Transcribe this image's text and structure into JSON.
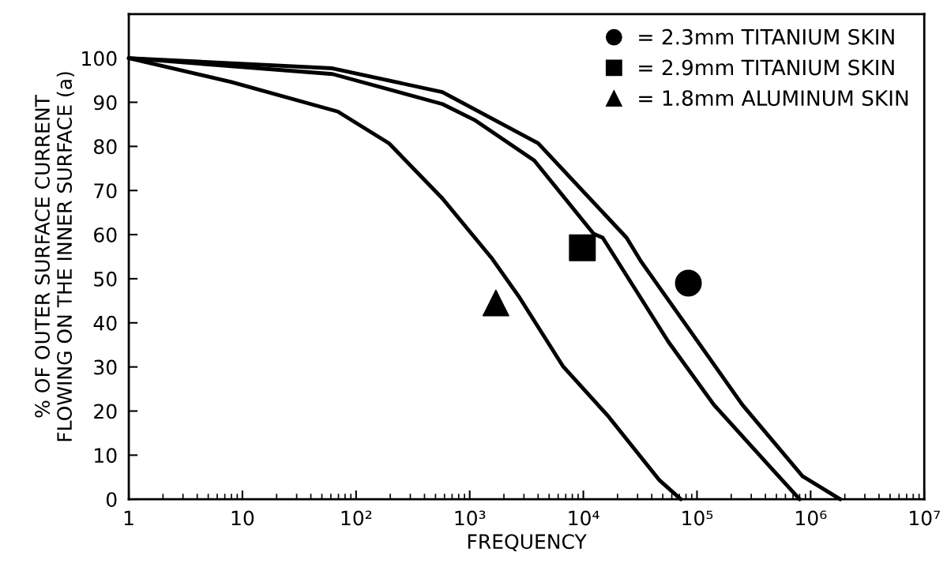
{
  "chart_data": {
    "type": "line",
    "xlabel": "FREQUENCY",
    "ylabel": "% OF OUTER SURFACE CURRENT\nFLOWING ON THE INNER SURFACE (a)",
    "log": "x",
    "xlim": [
      1,
      10000000
    ],
    "ylim": [
      0,
      110
    ],
    "xticks": [
      1,
      10,
      {
        "value": 100,
        "label": "10²"
      },
      {
        "value": 1000,
        "label": "10³"
      },
      {
        "value": 10000,
        "label": "10⁴"
      },
      {
        "value": 100000,
        "label": "10⁵"
      },
      {
        "value": 1000000,
        "label": "10⁶"
      },
      {
        "value": 10000000,
        "label": "10⁷"
      }
    ],
    "yticks": [
      0,
      10,
      20,
      30,
      40,
      50,
      60,
      70,
      80,
      90,
      100
    ],
    "grid": false,
    "legend": "top right",
    "series": [
      {
        "color": "#000000",
        "x": [
          1,
          8,
          69,
          195,
          575,
          1580,
          2750,
          6600,
          16600,
          46800,
          72000
        ],
        "values": [
          100,
          94.6,
          87.9,
          80.7,
          68.2,
          54.5,
          45.7,
          30.2,
          18.8,
          4.3,
          0
        ]
      },
      {
        "color": "#000000",
        "x": [
          1,
          62,
          575,
          1100,
          3700,
          12300,
          14800,
          56000,
          141000,
          468000,
          800000
        ],
        "values": [
          100,
          96.4,
          89.6,
          86,
          76.8,
          60.2,
          59.3,
          35.7,
          21.4,
          6.6,
          0
        ]
      },
      {
        "color": "#000000",
        "x": [
          1,
          62,
          575,
          4000,
          24000,
          32400,
          102000,
          251000,
          851000,
          1820000
        ],
        "values": [
          100,
          97.7,
          92.3,
          80.7,
          59.3,
          53.8,
          35.7,
          21.4,
          5.2,
          0
        ]
      },
      {
        "type": "scatter",
        "name": "= 2.3mm TITANIUM SKIN",
        "color": "#000000",
        "marker": "circle",
        "x": [
          84000
        ],
        "values": [
          49
        ]
      },
      {
        "type": "scatter",
        "name": "= 2.9mm TITANIUM SKIN",
        "color": "#000000",
        "marker": "square",
        "x": [
          9800
        ],
        "values": [
          57
        ]
      },
      {
        "type": "scatter",
        "name": "= 1.8mm ALUMINUM SKIN",
        "color": "#000000",
        "marker": "triangle",
        "x": [
          1700
        ],
        "values": [
          44.5
        ]
      }
    ]
  }
}
